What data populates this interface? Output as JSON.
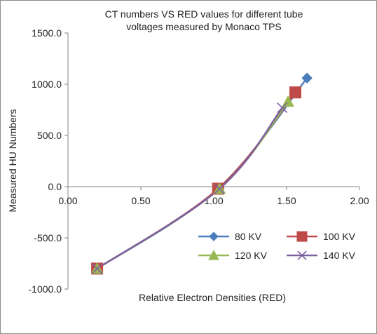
{
  "chart_data": {
    "type": "line",
    "title_line1": "CT numbers VS RED values for  different tube",
    "title_line2": "voltages measured by Monaco TPS",
    "xlabel": "Relative Electron Densities (RED)",
    "ylabel": "Measured HU Numbers",
    "xlim": [
      0,
      2
    ],
    "ylim": [
      -1000,
      1500
    ],
    "x_ticks": [
      0,
      0.5,
      1,
      1.5,
      2
    ],
    "x_tick_labels": [
      "0.00",
      "0.50",
      "1.00",
      "1.50",
      "2.00"
    ],
    "y_ticks": [
      -1000,
      -500,
      0,
      500,
      1000,
      1500
    ],
    "y_tick_labels": [
      "-1000.0",
      "-500.0",
      "0.0",
      "500.0",
      "1000.0",
      "1500.0"
    ],
    "grid": false,
    "legend_position": "bottom-right",
    "series": [
      {
        "name": "80 KV",
        "color": "#4a7ebb",
        "marker": "diamond",
        "points": [
          [
            0.2,
            -800
          ],
          [
            1.03,
            -20
          ],
          [
            1.64,
            1060
          ]
        ]
      },
      {
        "name": "100 KV",
        "color": "#be4b48",
        "marker": "square",
        "points": [
          [
            0.2,
            -800
          ],
          [
            1.03,
            -20
          ],
          [
            1.56,
            920
          ]
        ]
      },
      {
        "name": "120 KV",
        "color": "#98b954",
        "marker": "triangle",
        "points": [
          [
            0.2,
            -800
          ],
          [
            1.04,
            -20
          ],
          [
            1.51,
            830
          ]
        ]
      },
      {
        "name": "140 KV",
        "color": "#7d60a0",
        "marker": "x",
        "points": [
          [
            0.2,
            -800
          ],
          [
            1.04,
            -20
          ],
          [
            1.47,
            770
          ]
        ]
      }
    ]
  }
}
